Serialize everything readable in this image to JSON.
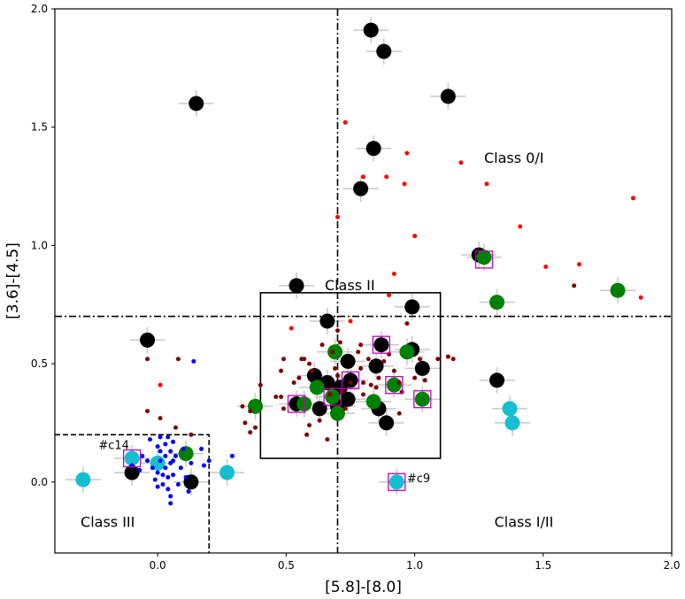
{
  "chart_data": {
    "type": "scatter",
    "xlabel": "[5.8]-[8.0]",
    "ylabel": "[3.6]-[4.5]",
    "xlim": [
      -0.4,
      2.0
    ],
    "ylim": [
      -0.3,
      2.0
    ],
    "xticks": [
      0.0,
      0.5,
      1.0,
      1.5,
      2.0
    ],
    "yticks": [
      0.0,
      0.5,
      1.0,
      1.5,
      2.0
    ],
    "xtick_labels": [
      "0.0",
      "0.5",
      "1.0",
      "1.5",
      "2.0"
    ],
    "ytick_labels": [
      "0.0",
      "0.5",
      "1.0",
      "1.5",
      "2.0"
    ],
    "grid": false,
    "colors": {
      "black": "#000000",
      "green": "#008000",
      "cyan": "#17becf",
      "red": "#ff0000",
      "darkred": "#800000",
      "blue": "#0000ff",
      "magenta": "#bf00bf",
      "errorbar": "#c8c8c8"
    },
    "region_labels": [
      {
        "text": "Class 0/I",
        "x": 1.27,
        "y": 1.35
      },
      {
        "text": "Class II",
        "x": 0.65,
        "y": 0.81
      },
      {
        "text": "Class III",
        "x": -0.3,
        "y": -0.19
      },
      {
        "text": "Class I/II",
        "x": 1.31,
        "y": -0.19
      }
    ],
    "point_labels": [
      {
        "text": "#c14",
        "x": -0.23,
        "y": 0.14
      },
      {
        "text": "#c9",
        "x": 0.97,
        "y": 0.0
      }
    ],
    "boundaries": {
      "vertical_dashdot_x": 0.7,
      "horizontal_dashdot_y": 0.7,
      "class2_box": {
        "x0": 0.4,
        "x1": 1.1,
        "y0": 0.1,
        "y1": 0.8
      },
      "class3_box": {
        "x0": -0.4,
        "x1": 0.2,
        "y0": -0.3,
        "y1": 0.2
      }
    },
    "series": [
      {
        "color": "black",
        "marker": "large-circle",
        "errorbars": true,
        "points": [
          [
            0.83,
            1.91
          ],
          [
            0.88,
            1.82
          ],
          [
            1.13,
            1.63
          ],
          [
            0.15,
            1.6
          ],
          [
            0.84,
            1.41
          ],
          [
            0.79,
            1.24
          ],
          [
            1.25,
            0.96
          ],
          [
            0.54,
            0.83
          ],
          [
            -0.04,
            0.6
          ],
          [
            0.66,
            0.68
          ],
          [
            0.99,
            0.74
          ],
          [
            0.87,
            0.58
          ],
          [
            0.99,
            0.56
          ],
          [
            0.74,
            0.51
          ],
          [
            0.85,
            0.49
          ],
          [
            1.03,
            0.48
          ],
          [
            0.61,
            0.45
          ],
          [
            0.66,
            0.42
          ],
          [
            0.71,
            0.4
          ],
          [
            0.75,
            0.43
          ],
          [
            0.7,
            0.32
          ],
          [
            0.74,
            0.35
          ],
          [
            0.54,
            0.33
          ],
          [
            0.63,
            0.31
          ],
          [
            0.86,
            0.31
          ],
          [
            0.89,
            0.25
          ],
          [
            1.32,
            0.43
          ],
          [
            -0.1,
            0.04
          ],
          [
            0.13,
            0.0
          ]
        ]
      },
      {
        "color": "green",
        "marker": "large-circle",
        "errorbars": true,
        "points": [
          [
            1.27,
            0.95
          ],
          [
            1.32,
            0.76
          ],
          [
            1.79,
            0.81
          ],
          [
            0.69,
            0.55
          ],
          [
            0.97,
            0.55
          ],
          [
            0.62,
            0.4
          ],
          [
            0.92,
            0.41
          ],
          [
            0.68,
            0.36
          ],
          [
            0.84,
            0.34
          ],
          [
            1.03,
            0.35
          ],
          [
            0.57,
            0.33
          ],
          [
            0.7,
            0.29
          ],
          [
            0.38,
            0.32
          ],
          [
            0.11,
            0.12
          ]
        ]
      },
      {
        "color": "cyan",
        "marker": "large-circle",
        "errorbars": true,
        "points": [
          [
            -0.29,
            0.01
          ],
          [
            -0.1,
            0.1
          ],
          [
            0.0,
            0.08
          ],
          [
            0.27,
            0.04
          ],
          [
            0.93,
            0.0
          ],
          [
            1.37,
            0.31
          ],
          [
            1.38,
            0.25
          ]
        ]
      },
      {
        "color": "red",
        "marker": "small-dot",
        "errorbars": false,
        "points": [
          [
            0.73,
            1.52
          ],
          [
            0.97,
            1.39
          ],
          [
            1.18,
            1.35
          ],
          [
            0.8,
            1.29
          ],
          [
            0.89,
            1.29
          ],
          [
            0.96,
            1.26
          ],
          [
            1.28,
            1.26
          ],
          [
            1.85,
            1.2
          ],
          [
            0.7,
            1.12
          ],
          [
            1.0,
            1.04
          ],
          [
            1.41,
            1.08
          ],
          [
            1.64,
            0.92
          ],
          [
            1.51,
            0.91
          ],
          [
            0.92,
            0.88
          ],
          [
            0.9,
            0.79
          ],
          [
            1.88,
            0.78
          ],
          [
            0.52,
            0.65
          ],
          [
            0.75,
            0.68
          ],
          [
            0.01,
            0.41
          ]
        ]
      },
      {
        "color": "darkred",
        "marker": "small-dot",
        "errorbars": false,
        "points": [
          [
            1.62,
            0.83
          ],
          [
            -0.04,
            0.52
          ],
          [
            0.08,
            0.52
          ],
          [
            -0.04,
            0.3
          ],
          [
            0.01,
            0.27
          ],
          [
            0.07,
            0.23
          ],
          [
            0.13,
            0.2
          ],
          [
            0.33,
            0.32
          ],
          [
            0.36,
            0.3
          ],
          [
            0.34,
            0.25
          ],
          [
            0.38,
            0.23
          ],
          [
            0.36,
            0.21
          ],
          [
            0.4,
            0.41
          ],
          [
            0.46,
            0.36
          ],
          [
            0.48,
            0.36
          ],
          [
            0.49,
            0.31
          ],
          [
            0.48,
            0.47
          ],
          [
            0.49,
            0.52
          ],
          [
            0.53,
            0.42
          ],
          [
            0.55,
            0.44
          ],
          [
            0.56,
            0.52
          ],
          [
            0.57,
            0.52
          ],
          [
            0.59,
            0.5
          ],
          [
            0.6,
            0.47
          ],
          [
            0.59,
            0.24
          ],
          [
            0.58,
            0.2
          ],
          [
            0.63,
            0.26
          ],
          [
            0.66,
            0.18
          ],
          [
            0.68,
            0.55
          ],
          [
            0.69,
            0.48
          ],
          [
            0.7,
            0.45
          ],
          [
            0.7,
            0.64
          ],
          [
            0.71,
            0.59
          ],
          [
            0.72,
            0.38
          ],
          [
            0.73,
            0.31
          ],
          [
            0.75,
            0.42
          ],
          [
            0.78,
            0.55
          ],
          [
            0.79,
            0.58
          ],
          [
            0.79,
            0.48
          ],
          [
            0.8,
            0.42
          ],
          [
            0.8,
            0.37
          ],
          [
            0.82,
            0.52
          ],
          [
            0.83,
            0.41
          ],
          [
            0.85,
            0.4
          ],
          [
            0.86,
            0.44
          ],
          [
            0.88,
            0.51
          ],
          [
            0.9,
            0.54
          ],
          [
            0.92,
            0.47
          ],
          [
            0.94,
            0.42
          ],
          [
            0.95,
            0.38
          ],
          [
            0.94,
            0.29
          ],
          [
            0.97,
            0.67
          ],
          [
            1.0,
            0.44
          ],
          [
            1.02,
            0.52
          ],
          [
            1.04,
            0.43
          ],
          [
            1.09,
            0.52
          ],
          [
            1.13,
            0.53
          ],
          [
            1.15,
            0.52
          ],
          [
            0.64,
            0.58
          ],
          [
            0.67,
            0.37
          ]
        ]
      },
      {
        "color": "blue",
        "marker": "small-dot",
        "errorbars": false,
        "points": [
          [
            -0.1,
            0.07
          ],
          [
            -0.07,
            0.05
          ],
          [
            -0.06,
            0.11
          ],
          [
            -0.04,
            0.09
          ],
          [
            -0.02,
            0.06
          ],
          [
            -0.01,
            0.01
          ],
          [
            0.0,
            0.15
          ],
          [
            0.0,
            0.04
          ],
          [
            0.01,
            0.19
          ],
          [
            0.01,
            0.13
          ],
          [
            0.01,
            0.09
          ],
          [
            0.02,
            0.03
          ],
          [
            0.02,
            -0.01
          ],
          [
            0.03,
            0.16
          ],
          [
            0.03,
            0.11
          ],
          [
            0.03,
            0.06
          ],
          [
            0.04,
            0.19
          ],
          [
            0.04,
            0.02
          ],
          [
            0.04,
            -0.03
          ],
          [
            0.05,
            0.13
          ],
          [
            0.05,
            0.08
          ],
          [
            0.05,
            -0.06
          ],
          [
            0.05,
            -0.09
          ],
          [
            0.06,
            0.17
          ],
          [
            0.06,
            0.03
          ],
          [
            0.07,
            0.11
          ],
          [
            0.08,
            -0.01
          ],
          [
            0.09,
            0.06
          ],
          [
            0.1,
            0.14
          ],
          [
            0.11,
            0.02
          ],
          [
            0.12,
            -0.04
          ],
          [
            0.13,
            0.08
          ],
          [
            0.14,
            0.51
          ],
          [
            0.17,
            0.14
          ],
          [
            0.18,
            0.07
          ],
          [
            0.2,
            0.09
          ],
          [
            0.29,
            0.11
          ],
          [
            -0.03,
            0.18
          ],
          [
            0.0,
            -0.02
          ],
          [
            0.06,
            0.09
          ]
        ]
      },
      {
        "color": "magenta",
        "marker": "open-square",
        "errorbars": false,
        "points": [
          [
            1.27,
            0.94
          ],
          [
            0.87,
            0.58
          ],
          [
            0.75,
            0.43
          ],
          [
            0.92,
            0.41
          ],
          [
            0.68,
            0.36
          ],
          [
            1.03,
            0.35
          ],
          [
            0.54,
            0.33
          ],
          [
            -0.1,
            0.1
          ],
          [
            0.93,
            0.0
          ]
        ]
      }
    ]
  }
}
